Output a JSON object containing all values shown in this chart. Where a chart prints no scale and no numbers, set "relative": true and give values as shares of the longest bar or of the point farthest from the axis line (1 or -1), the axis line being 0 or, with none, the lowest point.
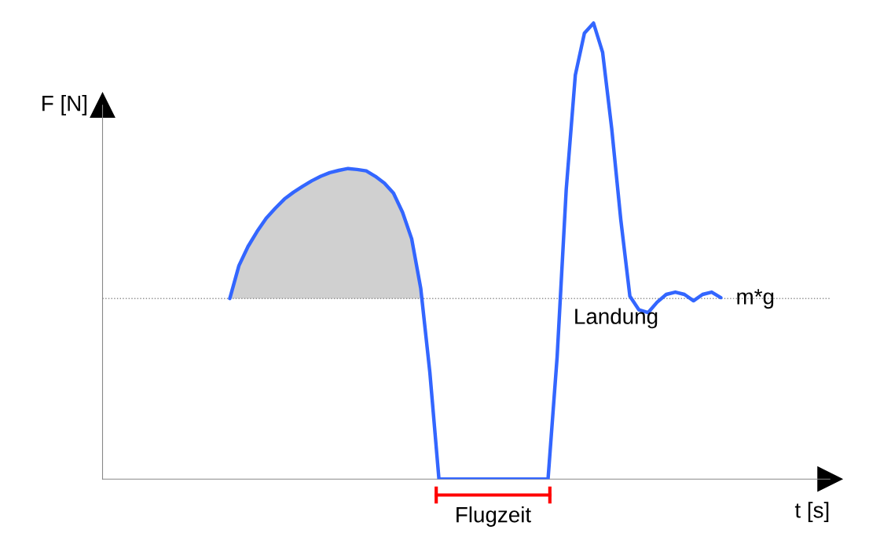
{
  "chart_data": {
    "type": "line",
    "relative": true,
    "xlabel": "t [s]",
    "ylabel": "F [N]",
    "categories": [
      null,
      null,
      null,
      null,
      null,
      null,
      null,
      null,
      null,
      null,
      null,
      null,
      null,
      null,
      null,
      null,
      null,
      null,
      null,
      null,
      null,
      null,
      null,
      null,
      null,
      null,
      null,
      null,
      null,
      null,
      null,
      null,
      null,
      null,
      null,
      null,
      null,
      null,
      null,
      null,
      null,
      null,
      null,
      null,
      null,
      null,
      null,
      null,
      null,
      null,
      null,
      null,
      null,
      null,
      null,
      null,
      null,
      null,
      null,
      null,
      null,
      null,
      null,
      null,
      null,
      null,
      null,
      null,
      null,
      null,
      null,
      null,
      null,
      null,
      null,
      null,
      null,
      null,
      null,
      null,
      null
    ],
    "series": [
      {
        "color": "#3366ff",
        "values": [
          null,
          null,
          null,
          null,
          null,
          null,
          null,
          null,
          null,
          null,
          null,
          null,
          null,
          null,
          0.396,
          0.468,
          0.51,
          0.543,
          0.572,
          0.594,
          0.614,
          0.629,
          0.642,
          0.654,
          0.664,
          0.672,
          0.677,
          0.681,
          0.679,
          0.676,
          0.664,
          0.649,
          0.627,
          0.585,
          0.527,
          0.418,
          0.234,
          0,
          0,
          0,
          0,
          0,
          0,
          0,
          0,
          0,
          0,
          0,
          0,
          0,
          0.268,
          0.635,
          0.886,
          0.978,
          1.0,
          0.936,
          0.769,
          0.569,
          0.401,
          0.371,
          0.365,
          0.388,
          0.405,
          0.41,
          0.405,
          0.391,
          0.405,
          0.41,
          0.398,
          null,
          null,
          null,
          null,
          null,
          null,
          null,
          null,
          null,
          null,
          null,
          null
        ],
        "lower": [
          null,
          null,
          null,
          null,
          null,
          null,
          null,
          null,
          null,
          null,
          null,
          null,
          null,
          null,
          0.396,
          0.396,
          0.396,
          0.396,
          0.396,
          0.396,
          0.396,
          0.396,
          0.396,
          0.396,
          0.396,
          0.396,
          0.396,
          0.396,
          0.396,
          0.396,
          0.396,
          0.396,
          0.396,
          0.396,
          0.396,
          0.396,
          null,
          null,
          null,
          null,
          null,
          null,
          null,
          null,
          null,
          null,
          null,
          null,
          null,
          null,
          null,
          null,
          null,
          null,
          null,
          null,
          null,
          null,
          null,
          null,
          null,
          null,
          null,
          null,
          null,
          null,
          null,
          null,
          null,
          null,
          null,
          null,
          null,
          null,
          null,
          null,
          null,
          null,
          null,
          null,
          null
        ],
        "upper": [
          null,
          null,
          null,
          null,
          null,
          null,
          null,
          null,
          null,
          null,
          null,
          null,
          null,
          null,
          0.396,
          0.468,
          0.51,
          0.543,
          0.572,
          0.594,
          0.614,
          0.629,
          0.642,
          0.654,
          0.664,
          0.672,
          0.677,
          0.681,
          0.679,
          0.676,
          0.664,
          0.649,
          0.627,
          0.585,
          0.527,
          0.418,
          null,
          null,
          null,
          null,
          null,
          null,
          null,
          null,
          null,
          null,
          null,
          null,
          null,
          null,
          null,
          null,
          null,
          null,
          null,
          null,
          null,
          null,
          null,
          null,
          null,
          null,
          null,
          null,
          null,
          null,
          null,
          null,
          null,
          null,
          null,
          null,
          null,
          null,
          null,
          null,
          null,
          null,
          null,
          null,
          null
        ]
      }
    ],
    "ref_lines": [
      {
        "axis": "y",
        "value": 0.396,
        "label": "m*g",
        "color": "#909090",
        "line_style": "dotted"
      }
    ],
    "annotations": [
      "Flugzeit",
      "Landung"
    ],
    "line_style": "solid",
    "marker": "none"
  }
}
